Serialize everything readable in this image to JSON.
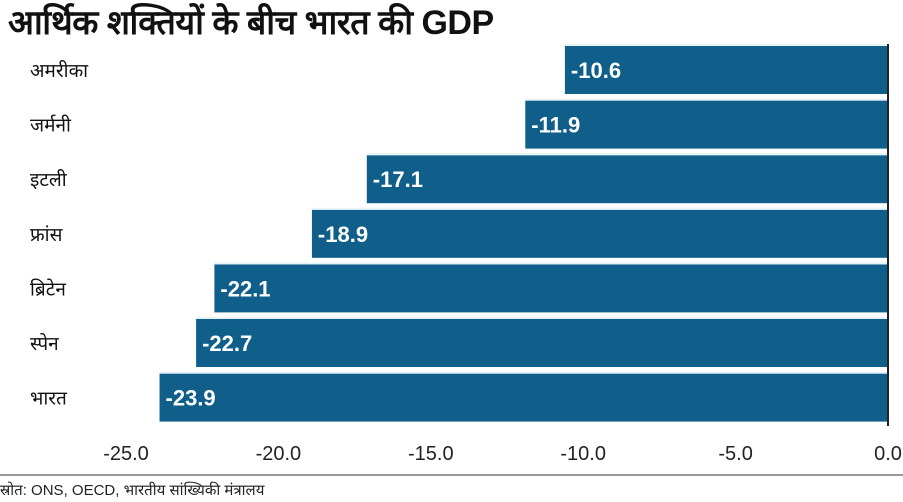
{
  "chart_data": {
    "type": "bar",
    "orientation": "horizontal",
    "title": "आर्थिक शक्तियों के बीच भारत की GDP",
    "categories": [
      "अमरीका",
      "जर्मनी",
      "इटली",
      "फ्रांस",
      "ब्रिटेन",
      "स्पेन",
      "भारत"
    ],
    "values": [
      -10.6,
      -11.9,
      -17.1,
      -18.9,
      -22.1,
      -22.7,
      -23.9
    ],
    "value_labels": [
      "-10.6",
      "-11.9",
      "-17.1",
      "-18.9",
      "-22.1",
      "-22.7",
      "-23.9"
    ],
    "xlim": [
      -25,
      0
    ],
    "xticks": [
      "-25.0",
      "-20.0",
      "-15.0",
      "-10.0",
      "-5.0",
      "0.0"
    ],
    "xtick_values": [
      -25,
      -20,
      -15,
      -10,
      -5,
      0
    ],
    "xlabel": "",
    "ylabel": "",
    "grid": false,
    "bar_color": "#0f5f8a",
    "row_bg_color": "#e6f3f9"
  },
  "source": "स्रोत: ONS, OECD, भारतीय सांख्यिकी मंत्रालय"
}
